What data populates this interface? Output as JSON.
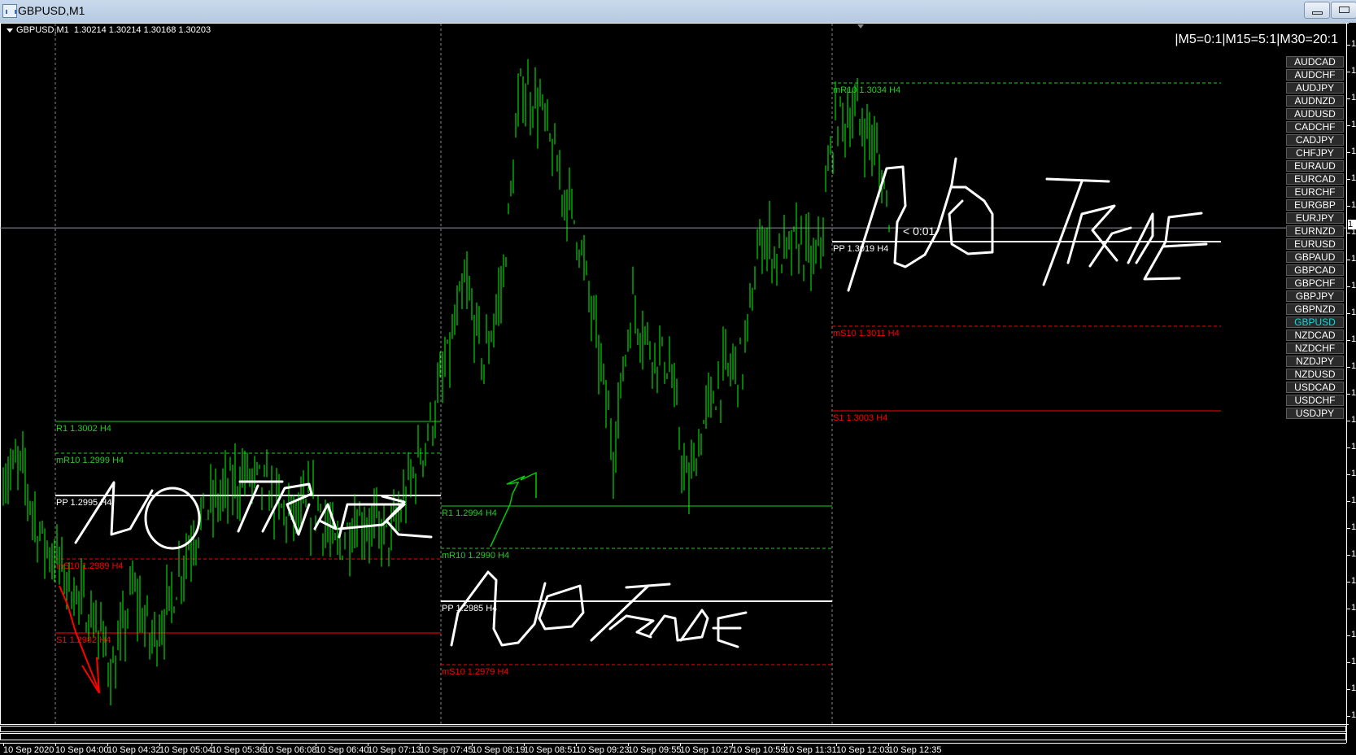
{
  "window": {
    "title": "GBPUSD,M1"
  },
  "chart": {
    "symbol_period": "GBPUSD,M1",
    "ohlc": "1.30214 1.30214 1.30168 1.30203",
    "ratio_text": "|M5=0:1|M15=5:1|M30=20:1",
    "countdown": "< 0:01",
    "bid_price": 1.30203,
    "price_axis_tick_label": "1",
    "handwritten_note": "NO TRADE",
    "colors": {
      "bars": "#00ff00",
      "resistance": "#22cc22",
      "support": "#ff0000",
      "pivot": "#ffffff",
      "selected_symbol": "#00e0e0"
    },
    "price_path": [
      1.29969,
      1.29977,
      1.29911,
      1.29887,
      1.29854,
      1.2983,
      1.29781,
      1.29862,
      1.29813,
      1.29846,
      1.29903,
      1.29936,
      1.29952,
      1.29969,
      1.29961,
      1.29936,
      1.29928,
      1.29944,
      1.29895,
      1.29928,
      1.2992,
      1.29911,
      1.29961,
      1.3001,
      1.30075,
      1.30149,
      1.30075,
      1.30149,
      1.30337,
      1.3032,
      1.30255,
      1.30206,
      1.30107,
      1.29993,
      1.30132,
      1.30091,
      1.30075,
      1.29952,
      1.30026,
      1.30067,
      1.30075,
      1.30198,
      1.30173,
      1.30189,
      1.30165,
      1.30304,
      1.30312,
      1.30287,
      1.30214
    ]
  },
  "pivot_sections": [
    {
      "levels": [
        {
          "label": "R1 1.3002 H4",
          "price": 1.3002,
          "type": "resistance",
          "style": "solid"
        },
        {
          "label": "mR10 1.2999 H4",
          "price": 1.2999,
          "type": "resistance",
          "style": "dashed"
        },
        {
          "label": "PP 1.2995 H4",
          "price": 1.2995,
          "type": "pivot",
          "style": "solid"
        },
        {
          "label": "mS10 1.2989 H4",
          "price": 1.2989,
          "type": "support",
          "style": "dashed"
        },
        {
          "label": "S1 1.2982 H4",
          "price": 1.2982,
          "type": "support",
          "style": "solid"
        }
      ]
    },
    {
      "levels": [
        {
          "label": "R1 1.2994 H4",
          "price": 1.2994,
          "type": "resistance",
          "style": "solid"
        },
        {
          "label": "mR10 1.2990 H4",
          "price": 1.299,
          "type": "resistance",
          "style": "dashed"
        },
        {
          "label": "PP 1.2985 H4",
          "price": 1.2985,
          "type": "pivot",
          "style": "solid"
        },
        {
          "label": "mS10 1.2979 H4",
          "price": 1.2979,
          "type": "support",
          "style": "dashed"
        }
      ]
    },
    {
      "levels": [
        {
          "label": "mR10 1.3034 H4",
          "price": 1.3034,
          "type": "resistance",
          "style": "dashed"
        },
        {
          "label": "PP 1.3019 H4",
          "price": 1.3019,
          "type": "pivot",
          "style": "solid"
        },
        {
          "label": "mS10 1.3011 H4",
          "price": 1.3011,
          "type": "support",
          "style": "dashed"
        },
        {
          "label": "S1 1.3003 H4",
          "price": 1.3003,
          "type": "support",
          "style": "solid"
        }
      ]
    }
  ],
  "symbols": [
    "AUDCAD",
    "AUDCHF",
    "AUDJPY",
    "AUDNZD",
    "AUDUSD",
    "CADCHF",
    "CADJPY",
    "CHFJPY",
    "EURAUD",
    "EURCAD",
    "EURCHF",
    "EURGBP",
    "EURJPY",
    "EURNZD",
    "EURUSD",
    "GBPAUD",
    "GBPCAD",
    "GBPCHF",
    "GBPJPY",
    "GBPNZD",
    "GBPUSD",
    "NZDCAD",
    "NZDCHF",
    "NZDJPY",
    "NZDUSD",
    "USDCAD",
    "USDCHF",
    "USDJPY"
  ],
  "selected_symbol": "GBPUSD",
  "time_labels": [
    "10 Sep 2020",
    "10 Sep 04:00",
    "10 Sep 04:32",
    "10 Sep 05:04",
    "10 Sep 05:36",
    "10 Sep 06:08",
    "10 Sep 06:40",
    "10 Sep 07:13",
    "10 Sep 07:45",
    "10 Sep 08:19",
    "10 Sep 08:51",
    "10 Sep 09:23",
    "10 Sep 09:55",
    "10 Sep 10:27",
    "10 Sep 10:59",
    "10 Sep 11:31",
    "10 Sep 12:03",
    "10 Sep 12:35"
  ]
}
